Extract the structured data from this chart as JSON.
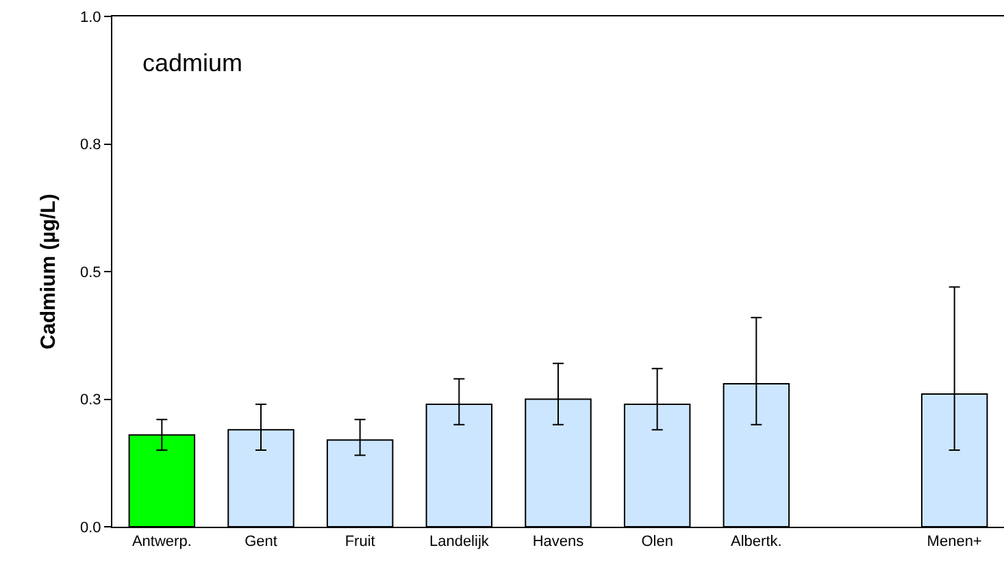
{
  "chart_data": {
    "type": "bar",
    "annotations": [
      "cadmium"
    ],
    "ylabel": "Cadmium (µg/L)",
    "categories": [
      "Antwerp.",
      "Gent",
      "Fruit",
      "Landelijk",
      "Havens",
      "Olen",
      "Albertk.",
      null,
      "Menen+"
    ],
    "values": [
      0.18,
      0.19,
      0.17,
      0.24,
      0.25,
      0.24,
      0.28,
      null,
      0.26
    ],
    "errors": [
      [
        0.15,
        0.21
      ],
      [
        0.15,
        0.24
      ],
      [
        0.14,
        0.21
      ],
      [
        0.2,
        0.29
      ],
      [
        0.2,
        0.32
      ],
      [
        0.19,
        0.31
      ],
      [
        0.2,
        0.41
      ],
      null,
      [
        0.15,
        0.47
      ]
    ],
    "colors": [
      "#00ff00",
      "#cce6ff",
      "#cce6ff",
      "#cce6ff",
      "#cce6ff",
      "#cce6ff",
      "#cce6ff",
      "#cce6ff",
      "#cce6ff"
    ],
    "ylim": [
      0,
      1
    ],
    "yticks": [
      {
        "value": 0,
        "label": "0.0"
      },
      {
        "value": 0.25,
        "label": "0.3"
      },
      {
        "value": 0.5,
        "label": "0.5"
      },
      {
        "value": 0.75,
        "label": "0.8"
      },
      {
        "value": 1,
        "label": "1.0"
      }
    ],
    "grid": false,
    "legend": false
  }
}
